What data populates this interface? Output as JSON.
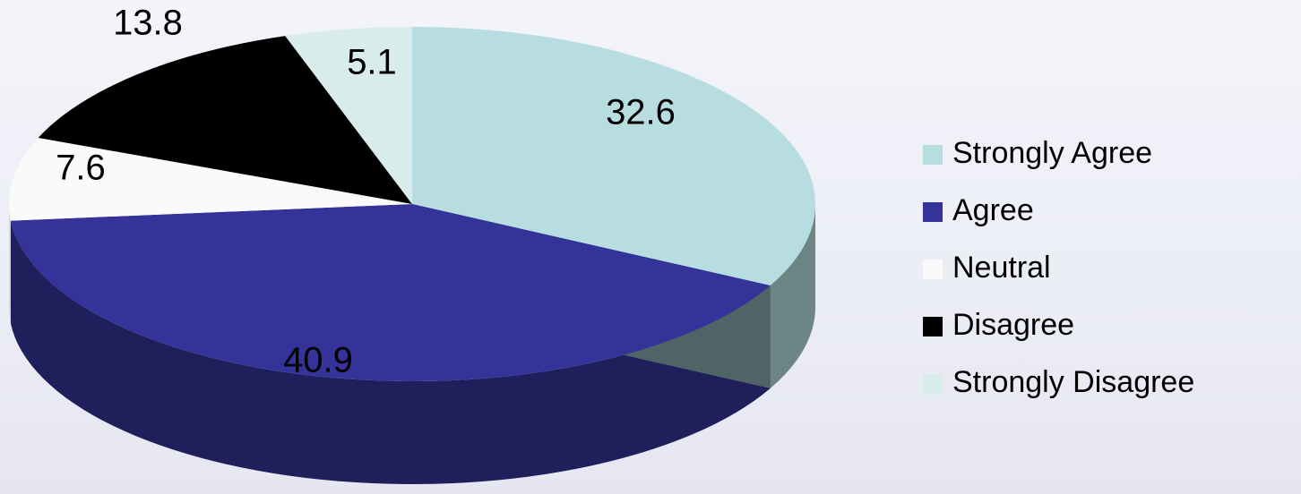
{
  "chart_data": {
    "type": "pie",
    "categories": [
      "Strongly Agree",
      "Agree",
      "Neutral",
      "Disagree",
      "Strongly Disagree"
    ],
    "values": [
      32.6,
      40.9,
      7.6,
      13.8,
      5.1
    ],
    "colors": [
      "#b8dde0",
      "#333399",
      "#fafafa",
      "#000000",
      "#d8ecec"
    ],
    "legend": "right"
  }
}
